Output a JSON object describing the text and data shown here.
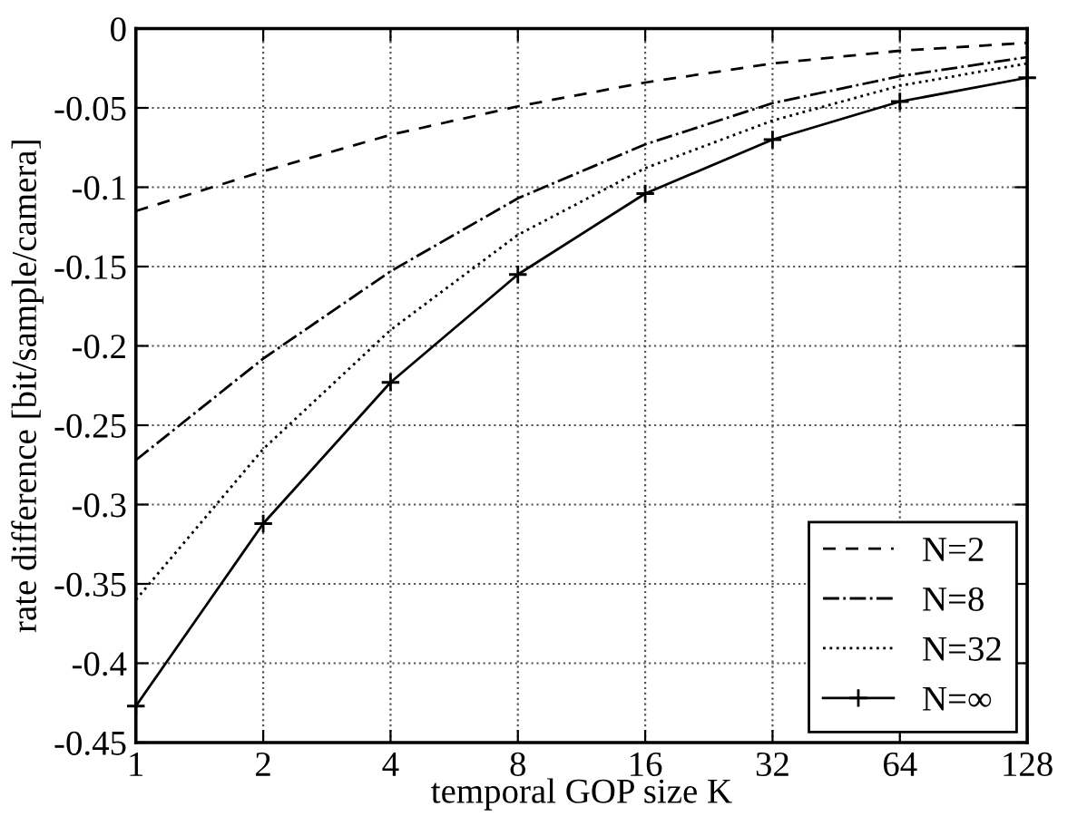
{
  "chart_data": {
    "type": "line",
    "xlabel": "temporal GOP size K",
    "ylabel": "rate difference [bit/sample/camera]",
    "log": "x",
    "x": [
      1,
      2,
      4,
      8,
      16,
      32,
      64,
      128
    ],
    "xlim": [
      1,
      128
    ],
    "xticks": [
      1,
      2,
      4,
      8,
      16,
      32,
      64,
      128
    ],
    "ylim": [
      -0.45,
      0
    ],
    "yticks": [
      -0.45,
      -0.4,
      -0.35,
      -0.3,
      -0.25,
      -0.2,
      -0.15,
      -0.1,
      -0.05,
      0
    ],
    "grid": true,
    "legend": "bottom right",
    "series": [
      {
        "name": "N=2",
        "color": "#000000",
        "line_style": "dashed",
        "marker": "none",
        "values": [
          -0.115,
          -0.09,
          -0.067,
          -0.049,
          -0.034,
          -0.022,
          -0.014,
          -0.009
        ]
      },
      {
        "name": "N=8",
        "color": "#000000",
        "line_style": "dashdot",
        "marker": "none",
        "values": [
          -0.272,
          -0.208,
          -0.153,
          -0.107,
          -0.073,
          -0.047,
          -0.03,
          -0.018
        ]
      },
      {
        "name": "N=32",
        "color": "#000000",
        "line_style": "dotted",
        "marker": "none",
        "values": [
          -0.36,
          -0.265,
          -0.19,
          -0.13,
          -0.088,
          -0.058,
          -0.036,
          -0.022
        ]
      },
      {
        "name": "N=∞",
        "color": "#000000",
        "line_style": "solid",
        "marker": "cross",
        "values": [
          -0.427,
          -0.312,
          -0.223,
          -0.155,
          -0.104,
          -0.07,
          -0.046,
          -0.031
        ]
      }
    ]
  }
}
